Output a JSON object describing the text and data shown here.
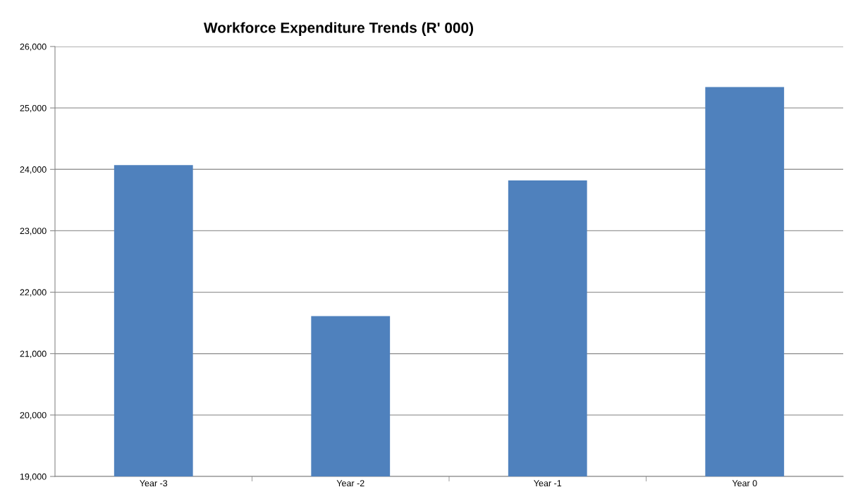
{
  "chart_data": {
    "type": "bar",
    "title": "Workforce Expenditure Trends (R' 000)",
    "categories": [
      "Year -3",
      "Year -2",
      "Year -1",
      "Year 0"
    ],
    "values": [
      24070,
      21610,
      23820,
      25340
    ],
    "color": "#4f81bd",
    "ylim": [
      19000,
      26000
    ],
    "yticks": [
      {
        "value": 19000,
        "label": "19,000"
      },
      {
        "value": 20000,
        "label": "20,000"
      },
      {
        "value": 21000,
        "label": "21,000"
      },
      {
        "value": 22000,
        "label": "22,000"
      },
      {
        "value": 23000,
        "label": "23,000"
      },
      {
        "value": 24000,
        "label": "24,000"
      },
      {
        "value": 25000,
        "label": "25,000"
      },
      {
        "value": 26000,
        "label": "26,000"
      }
    ],
    "grid": "y",
    "legend": false
  }
}
